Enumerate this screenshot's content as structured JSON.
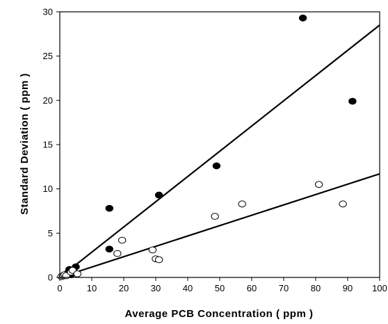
{
  "chart_data": {
    "type": "scatter",
    "title": "",
    "xlabel": "Average PCB Concentration ( ppm )",
    "ylabel": "Standard Deviation ( ppm )",
    "xlim": [
      0,
      100
    ],
    "ylim": [
      0,
      30
    ],
    "x_ticks": [
      0,
      10,
      20,
      30,
      40,
      50,
      60,
      70,
      80,
      90,
      100
    ],
    "y_ticks": [
      0,
      5,
      10,
      15,
      20,
      25,
      30
    ],
    "grid": false,
    "legend": "none",
    "series": [
      {
        "marker": "filled-circle",
        "color": "#000000",
        "points": [
          {
            "x": 1.5,
            "y": 0.2
          },
          {
            "x": 2.5,
            "y": 0.5
          },
          {
            "x": 3.0,
            "y": 0.9
          },
          {
            "x": 3.5,
            "y": 0.3
          },
          {
            "x": 5.0,
            "y": 1.2
          },
          {
            "x": 15.5,
            "y": 7.8
          },
          {
            "x": 15.5,
            "y": 3.2
          },
          {
            "x": 31.0,
            "y": 9.3
          },
          {
            "x": 49.0,
            "y": 12.6
          },
          {
            "x": 76.0,
            "y": 29.3
          },
          {
            "x": 91.5,
            "y": 19.9
          }
        ],
        "fit_line": {
          "x": [
            0,
            100
          ],
          "y": [
            0,
            28.5
          ]
        }
      },
      {
        "marker": "open-circle",
        "color": "#000000",
        "points": [
          {
            "x": 0.5,
            "y": 0.1
          },
          {
            "x": 1.0,
            "y": 0.2
          },
          {
            "x": 1.5,
            "y": 0.3
          },
          {
            "x": 2.0,
            "y": 0.2
          },
          {
            "x": 3.5,
            "y": 0.6
          },
          {
            "x": 4.0,
            "y": 0.8
          },
          {
            "x": 5.5,
            "y": 0.4
          },
          {
            "x": 18.0,
            "y": 2.7
          },
          {
            "x": 19.5,
            "y": 4.2
          },
          {
            "x": 29.0,
            "y": 3.1
          },
          {
            "x": 30.0,
            "y": 2.1
          },
          {
            "x": 31.0,
            "y": 2.0
          },
          {
            "x": 48.5,
            "y": 6.9
          },
          {
            "x": 57.0,
            "y": 8.3
          },
          {
            "x": 81.0,
            "y": 10.5
          },
          {
            "x": 88.5,
            "y": 8.3
          }
        ],
        "fit_line": {
          "x": [
            0,
            100
          ],
          "y": [
            0,
            11.7
          ]
        }
      }
    ]
  }
}
